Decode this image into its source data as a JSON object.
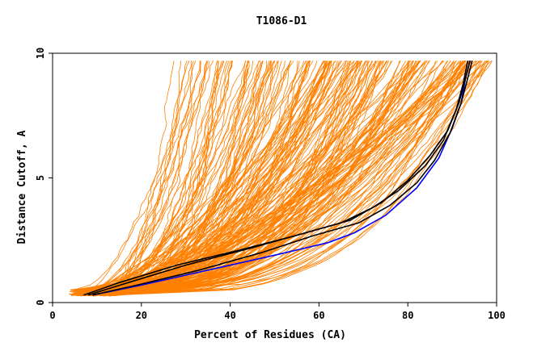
{
  "chart_data": {
    "type": "line",
    "title": "T1086-D1",
    "xlabel": "Percent of Residues (CA)",
    "ylabel": "Distance Cutoff, A",
    "xlim": [
      0,
      100
    ],
    "ylim": [
      0,
      10
    ],
    "xticks": [
      "0",
      "20",
      "40",
      "60",
      "80",
      "100"
    ],
    "yticks": [
      "0",
      "5",
      "10"
    ],
    "grid": false,
    "colors": {
      "others": "#ff8000",
      "highlight_black": "#000000",
      "highlight_blue": "#0000ff"
    },
    "series": [
      {
        "color": "#0000ff",
        "x": [
          9,
          20,
          35,
          50,
          62,
          68,
          75,
          82,
          87,
          90,
          92,
          93,
          94
        ],
        "y": [
          0.3,
          0.7,
          1.3,
          1.9,
          2.4,
          2.8,
          3.5,
          4.6,
          5.8,
          7.0,
          8.0,
          9.0,
          9.7
        ]
      },
      {
        "color": "#000000",
        "x": [
          7,
          15,
          28,
          42,
          55,
          65,
          72,
          78,
          84,
          88,
          91,
          92.5,
          93.5
        ],
        "y": [
          0.3,
          0.8,
          1.5,
          2.1,
          2.7,
          3.2,
          3.8,
          4.5,
          5.5,
          6.5,
          7.8,
          8.8,
          9.7
        ]
      },
      {
        "color": "#000000",
        "x": [
          8,
          17,
          30,
          45,
          57,
          67,
          74,
          80,
          85,
          89,
          91.5,
          93,
          94
        ],
        "y": [
          0.3,
          0.8,
          1.5,
          2.2,
          2.8,
          3.3,
          4.0,
          4.9,
          5.9,
          6.9,
          8.0,
          9.0,
          9.7
        ]
      },
      {
        "color": "#000000",
        "x": [
          9,
          19,
          33,
          47,
          59,
          69,
          76,
          82,
          86,
          89.5,
          92,
          93.5,
          94.5
        ],
        "y": [
          0.3,
          0.7,
          1.3,
          2.0,
          2.7,
          3.2,
          3.9,
          4.8,
          5.7,
          6.8,
          8.0,
          9.0,
          9.7
        ]
      }
    ]
  }
}
